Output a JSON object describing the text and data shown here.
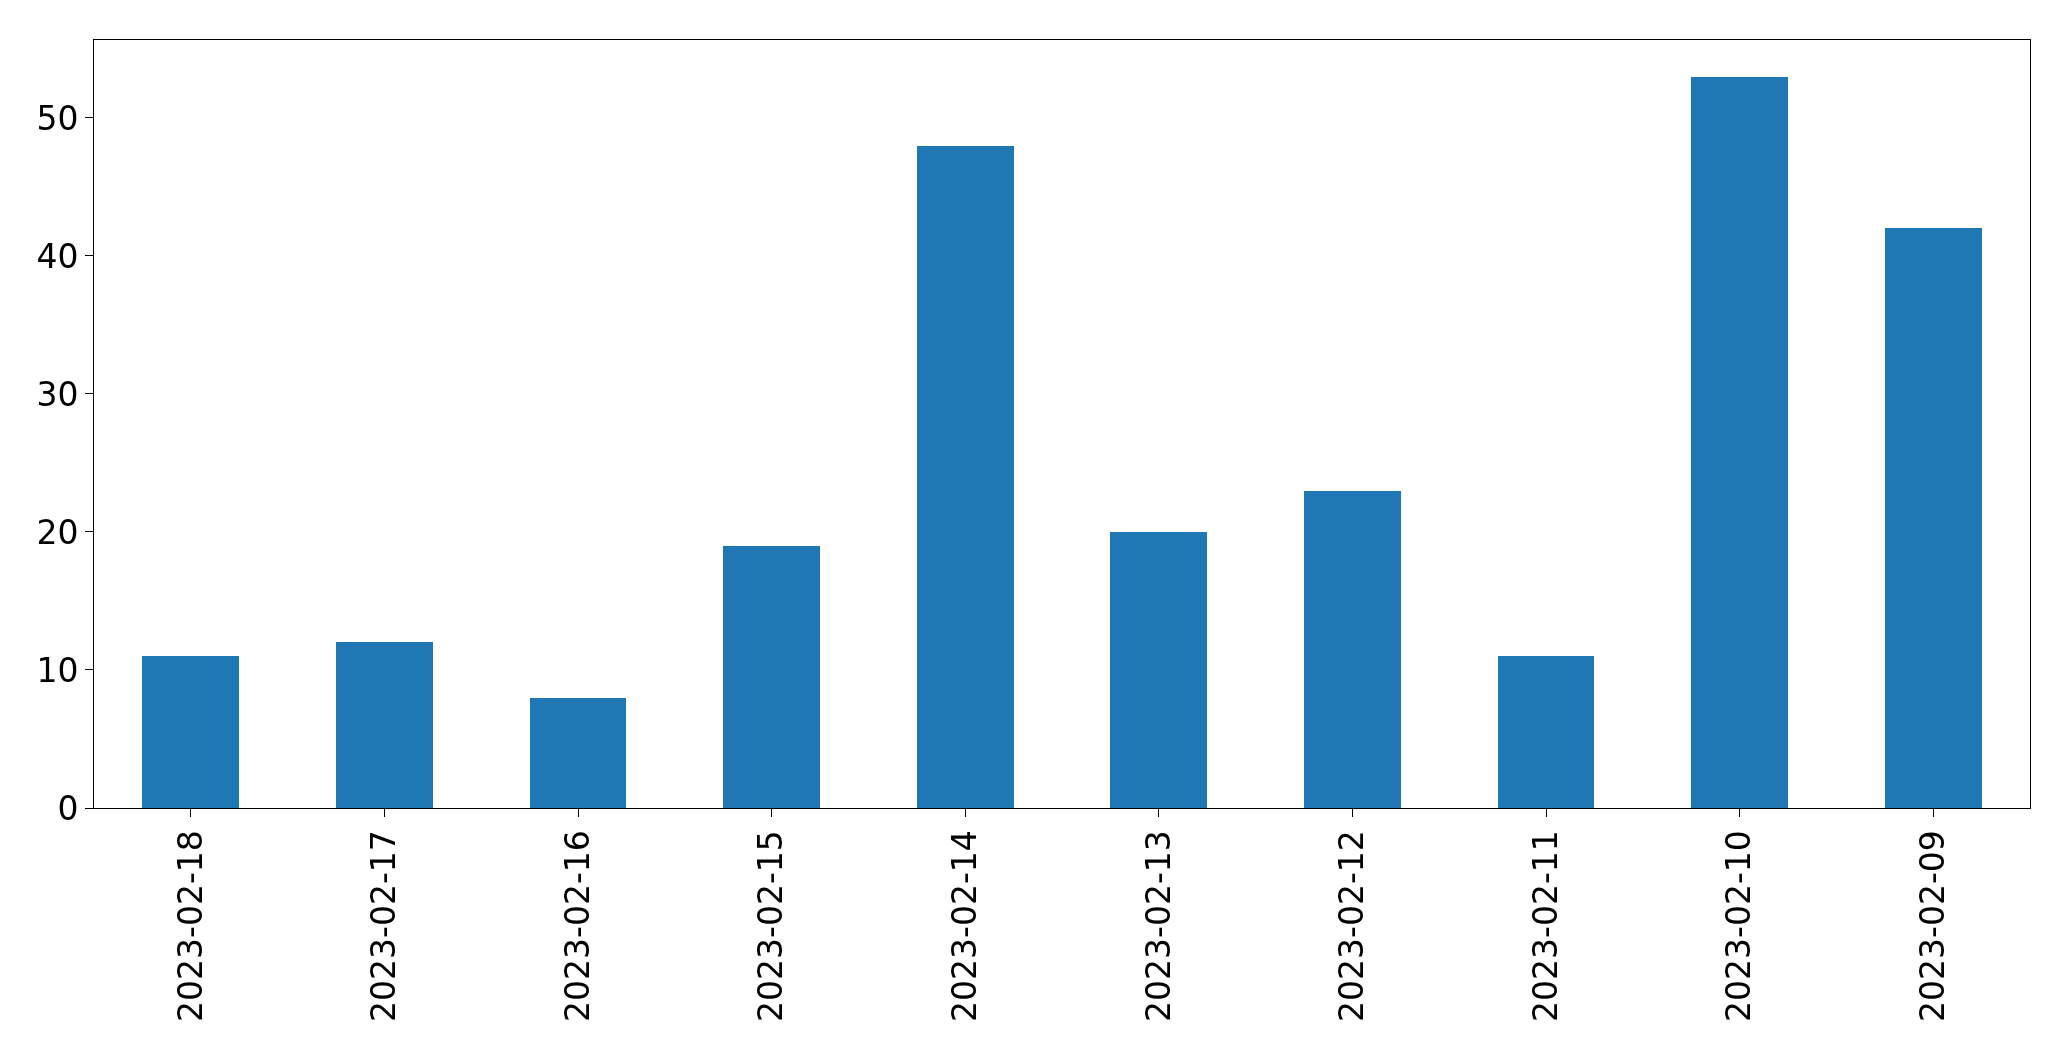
{
  "chart_data": {
    "type": "bar",
    "categories": [
      "2023-02-18",
      "2023-02-17",
      "2023-02-16",
      "2023-02-15",
      "2023-02-14",
      "2023-02-13",
      "2023-02-12",
      "2023-02-11",
      "2023-02-10",
      "2023-02-09"
    ],
    "values": [
      11,
      12,
      8,
      19,
      48,
      20,
      23,
      11,
      53,
      42
    ],
    "color": "#1f77b4",
    "ylim": [
      0,
      55.65
    ],
    "yticks": [
      0,
      10,
      20,
      30,
      40,
      50
    ]
  }
}
